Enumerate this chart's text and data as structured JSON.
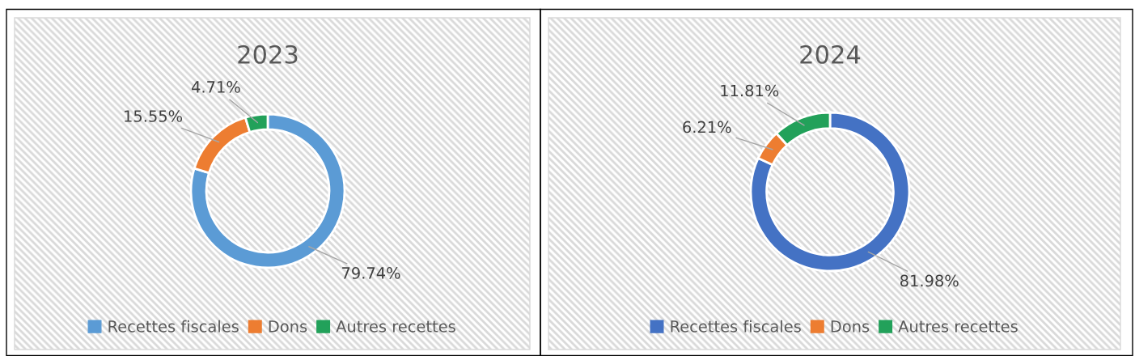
{
  "chart_data": [
    {
      "type": "donut",
      "title": "2023",
      "categories": [
        "Recettes fiscales",
        "Dons",
        "Autres recettes"
      ],
      "values": [
        79.74,
        15.55,
        4.71
      ],
      "colors": [
        "#5b9bd5",
        "#ed7d31",
        "#22a15a"
      ],
      "value_labels": [
        "79.74%",
        "15.55%",
        "4.71%"
      ],
      "legend": "bottom"
    },
    {
      "type": "donut",
      "title": "2024",
      "categories": [
        "Recettes fiscales",
        "Dons",
        "Autres recettes"
      ],
      "values": [
        81.98,
        6.21,
        11.81
      ],
      "colors": [
        "#4472c4",
        "#ed7d31",
        "#22a15a"
      ],
      "value_labels": [
        "81.98%",
        "6.21%",
        "11.81%"
      ],
      "legend": "bottom"
    }
  ]
}
